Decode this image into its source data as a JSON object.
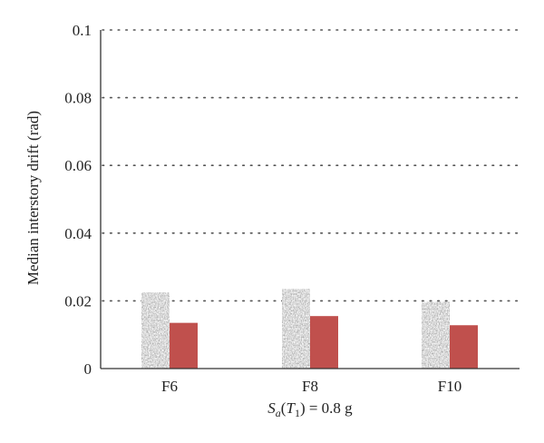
{
  "chart_data": {
    "type": "bar",
    "categories": [
      "F6",
      "F8",
      "F10"
    ],
    "series": [
      {
        "values": [
          0.0225,
          0.0235,
          0.0197
        ],
        "color": "#a8a8a8",
        "pattern": "noise"
      },
      {
        "values": [
          0.0135,
          0.0155,
          0.0128
        ],
        "color": "#c0504d",
        "pattern": "solid"
      }
    ],
    "ylabel": "Median interstory drift (rad)",
    "xlabel": {
      "prefix_italic": "S",
      "sub_italic": "a",
      "open": "(",
      "mid_italic": "T",
      "sub_plain": "1",
      "close": ") = 0.8 g"
    },
    "ylim": [
      0,
      0.1
    ],
    "yticks": [
      0,
      0.02,
      0.04,
      0.06,
      0.08,
      0.1
    ],
    "ytick_labels": [
      "0",
      "0.02",
      "0.04",
      "0.06",
      "0.08",
      "0.1"
    ],
    "grid": "horizontal-dotted",
    "legend": "none"
  }
}
